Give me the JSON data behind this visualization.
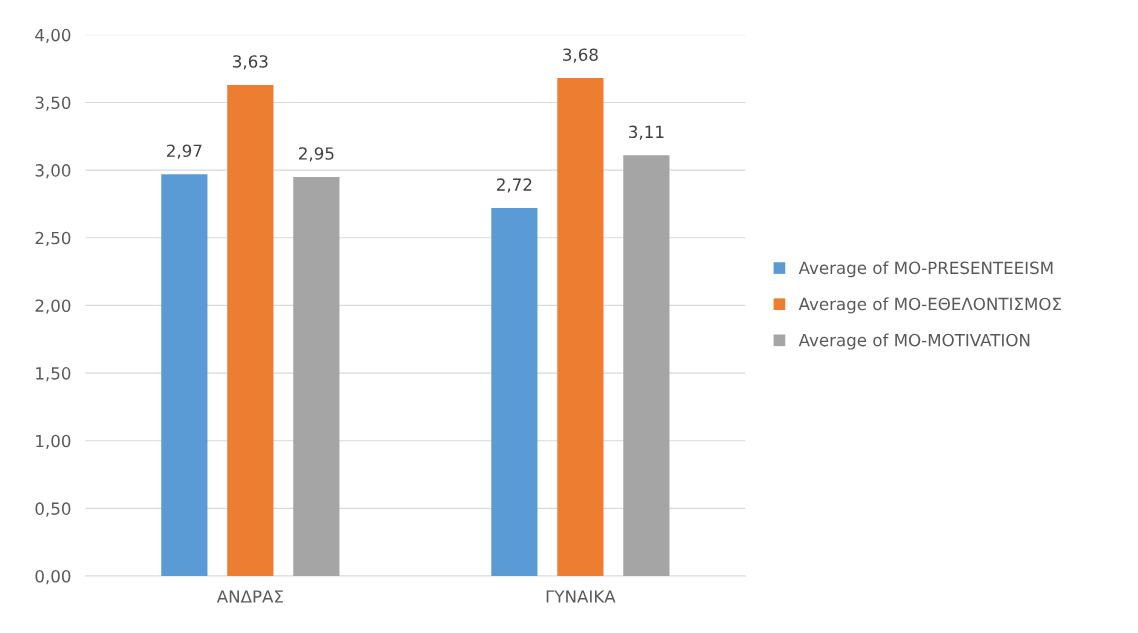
{
  "chart_data": {
    "type": "bar",
    "categories": [
      "ΑΝΔΡΑΣ",
      "ΓΥΝΑΙΚΑ"
    ],
    "series": [
      {
        "name": "Average of ΜΟ-PRESENTEEISM",
        "color": "#5b9bd5",
        "values": [
          2.97,
          2.72
        ],
        "value_labels": [
          "2,97",
          "2,72"
        ]
      },
      {
        "name": "Average of ΜΟ-ΕΘΕΛΟΝΤΙΣΜΟΣ",
        "color": "#ed7d31",
        "values": [
          3.63,
          3.68
        ],
        "value_labels": [
          "3,63",
          "3,68"
        ]
      },
      {
        "name": "Average of ΜΟ-MOTIVATION",
        "color": "#a5a5a5",
        "values": [
          2.95,
          3.11
        ],
        "value_labels": [
          "2,95",
          "3,11"
        ]
      }
    ],
    "ylim": [
      0,
      4
    ],
    "yticks": [
      {
        "value": 0,
        "label": "0,00"
      },
      {
        "value": 0.5,
        "label": "0,50"
      },
      {
        "value": 1,
        "label": "1,00"
      },
      {
        "value": 1.5,
        "label": "1,50"
      },
      {
        "value": 2,
        "label": "2,00"
      },
      {
        "value": 2.5,
        "label": "2,50"
      },
      {
        "value": 3,
        "label": "3,00"
      },
      {
        "value": 3.5,
        "label": "3,50"
      },
      {
        "value": 4,
        "label": "4,00"
      }
    ],
    "grid": "y",
    "legend": "right"
  }
}
